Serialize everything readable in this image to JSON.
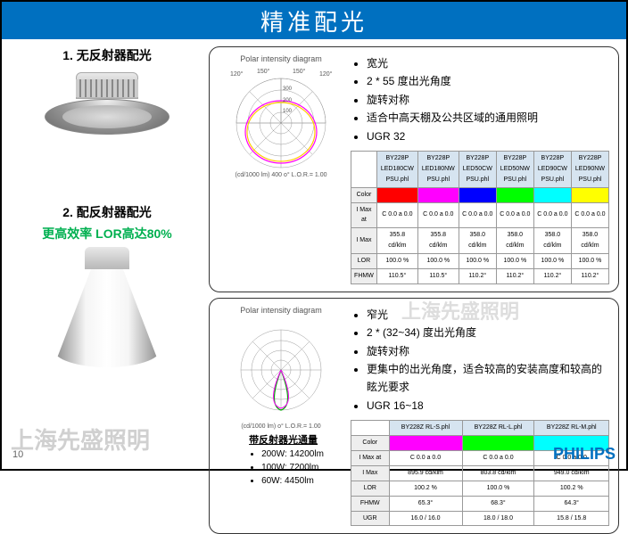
{
  "header": "精准配光",
  "section1": {
    "title": "1. 无反射器配光",
    "bullets_title": "宽光",
    "bullets": [
      "2 * 55 度出光角度",
      "旋转对称",
      "适合中高天棚及公共区域的通用照明",
      "UGR 32"
    ],
    "polar_title": "Polar intensity diagram",
    "polar_sub": "(cd/1000 lm)    400    o°    L.O.R.= 1.00",
    "angles": [
      "120°",
      "150°",
      "150°",
      "120°"
    ],
    "rings": [
      "100",
      "200",
      "300"
    ],
    "table": {
      "headers": [
        "",
        "BY228P LED180CW PSU.phl",
        "BY228P LED180NW PSU.phl",
        "BY228P LED50CW PSU.phl",
        "BY228P LED50NW PSU.phl",
        "BY228P LED90CW PSU.phl",
        "BY228P LED90NW PSU.phl"
      ],
      "colors": [
        "#ff0000",
        "#ff00ff",
        "#0000ff",
        "#00ff00",
        "#00ffff",
        "#ffff00"
      ],
      "rows": [
        [
          "I Max at",
          "C 0.0 a 0.0",
          "C 0.0 a 0.0",
          "C 0.0 a 0.0",
          "C 0.0 a 0.0",
          "C 0.0 a 0.0",
          "C 0.0 a 0.0"
        ],
        [
          "I Max",
          "355.8 cd/klm",
          "355.8 cd/klm",
          "358.0 cd/klm",
          "358.0 cd/klm",
          "358.0 cd/klm",
          "358.0 cd/klm"
        ],
        [
          "LOR",
          "100.0 %",
          "100.0 %",
          "100.0 %",
          "100.0 %",
          "100.0 %",
          "100.0 %"
        ],
        [
          "FHMW",
          "110.5°",
          "110.5°",
          "110.2°",
          "110.2°",
          "110.2°",
          "110.2°"
        ]
      ]
    }
  },
  "section2": {
    "title": "2. 配反射器配光",
    "eff": "更高效率 LOR高达80%",
    "bullets_title": "窄光",
    "bullets": [
      "2 * (32~34) 度出光角度",
      "旋转对称",
      "更集中的出光角度，适合较高的安装高度和较高的眩光要求",
      "UGR 16~18"
    ],
    "polar_title": "Polar intensity diagram",
    "polar_sub": "(cd/1000 lm)     o°     L.O.R.= 1.00",
    "lumens_title": "带反射器光通量",
    "lumens": [
      "200W: 14200lm",
      "100W: 7200lm",
      "60W: 4450lm"
    ],
    "table": {
      "headers": [
        "",
        "BY228Z RL-S.phl",
        "BY228Z RL-L.phl",
        "BY228Z RL-M.phl"
      ],
      "colors": [
        "#ff00ff",
        "#00ff00",
        "#00ffff"
      ],
      "rows": [
        [
          "I Max at",
          "C 0.0 a 0.0",
          "C 0.0 a 0.0",
          "C 0.0 a 0.0"
        ],
        [
          "I Max",
          "895.9 cd/klm",
          "803.8 cd/klm",
          "949.0 cd/klm"
        ],
        [
          "LOR",
          "100.2 %",
          "100.0 %",
          "100.2 %"
        ],
        [
          "FHMW",
          "65.3°",
          "68.3°",
          "64.3°"
        ],
        [
          "UGR",
          "16.0 / 16.0",
          "18.0 / 18.0",
          "15.8 / 15.8"
        ]
      ]
    }
  },
  "page": "10",
  "brand": "PHILIPS",
  "wm": "上海先盛照明",
  "wm2": "上海先盛照明"
}
